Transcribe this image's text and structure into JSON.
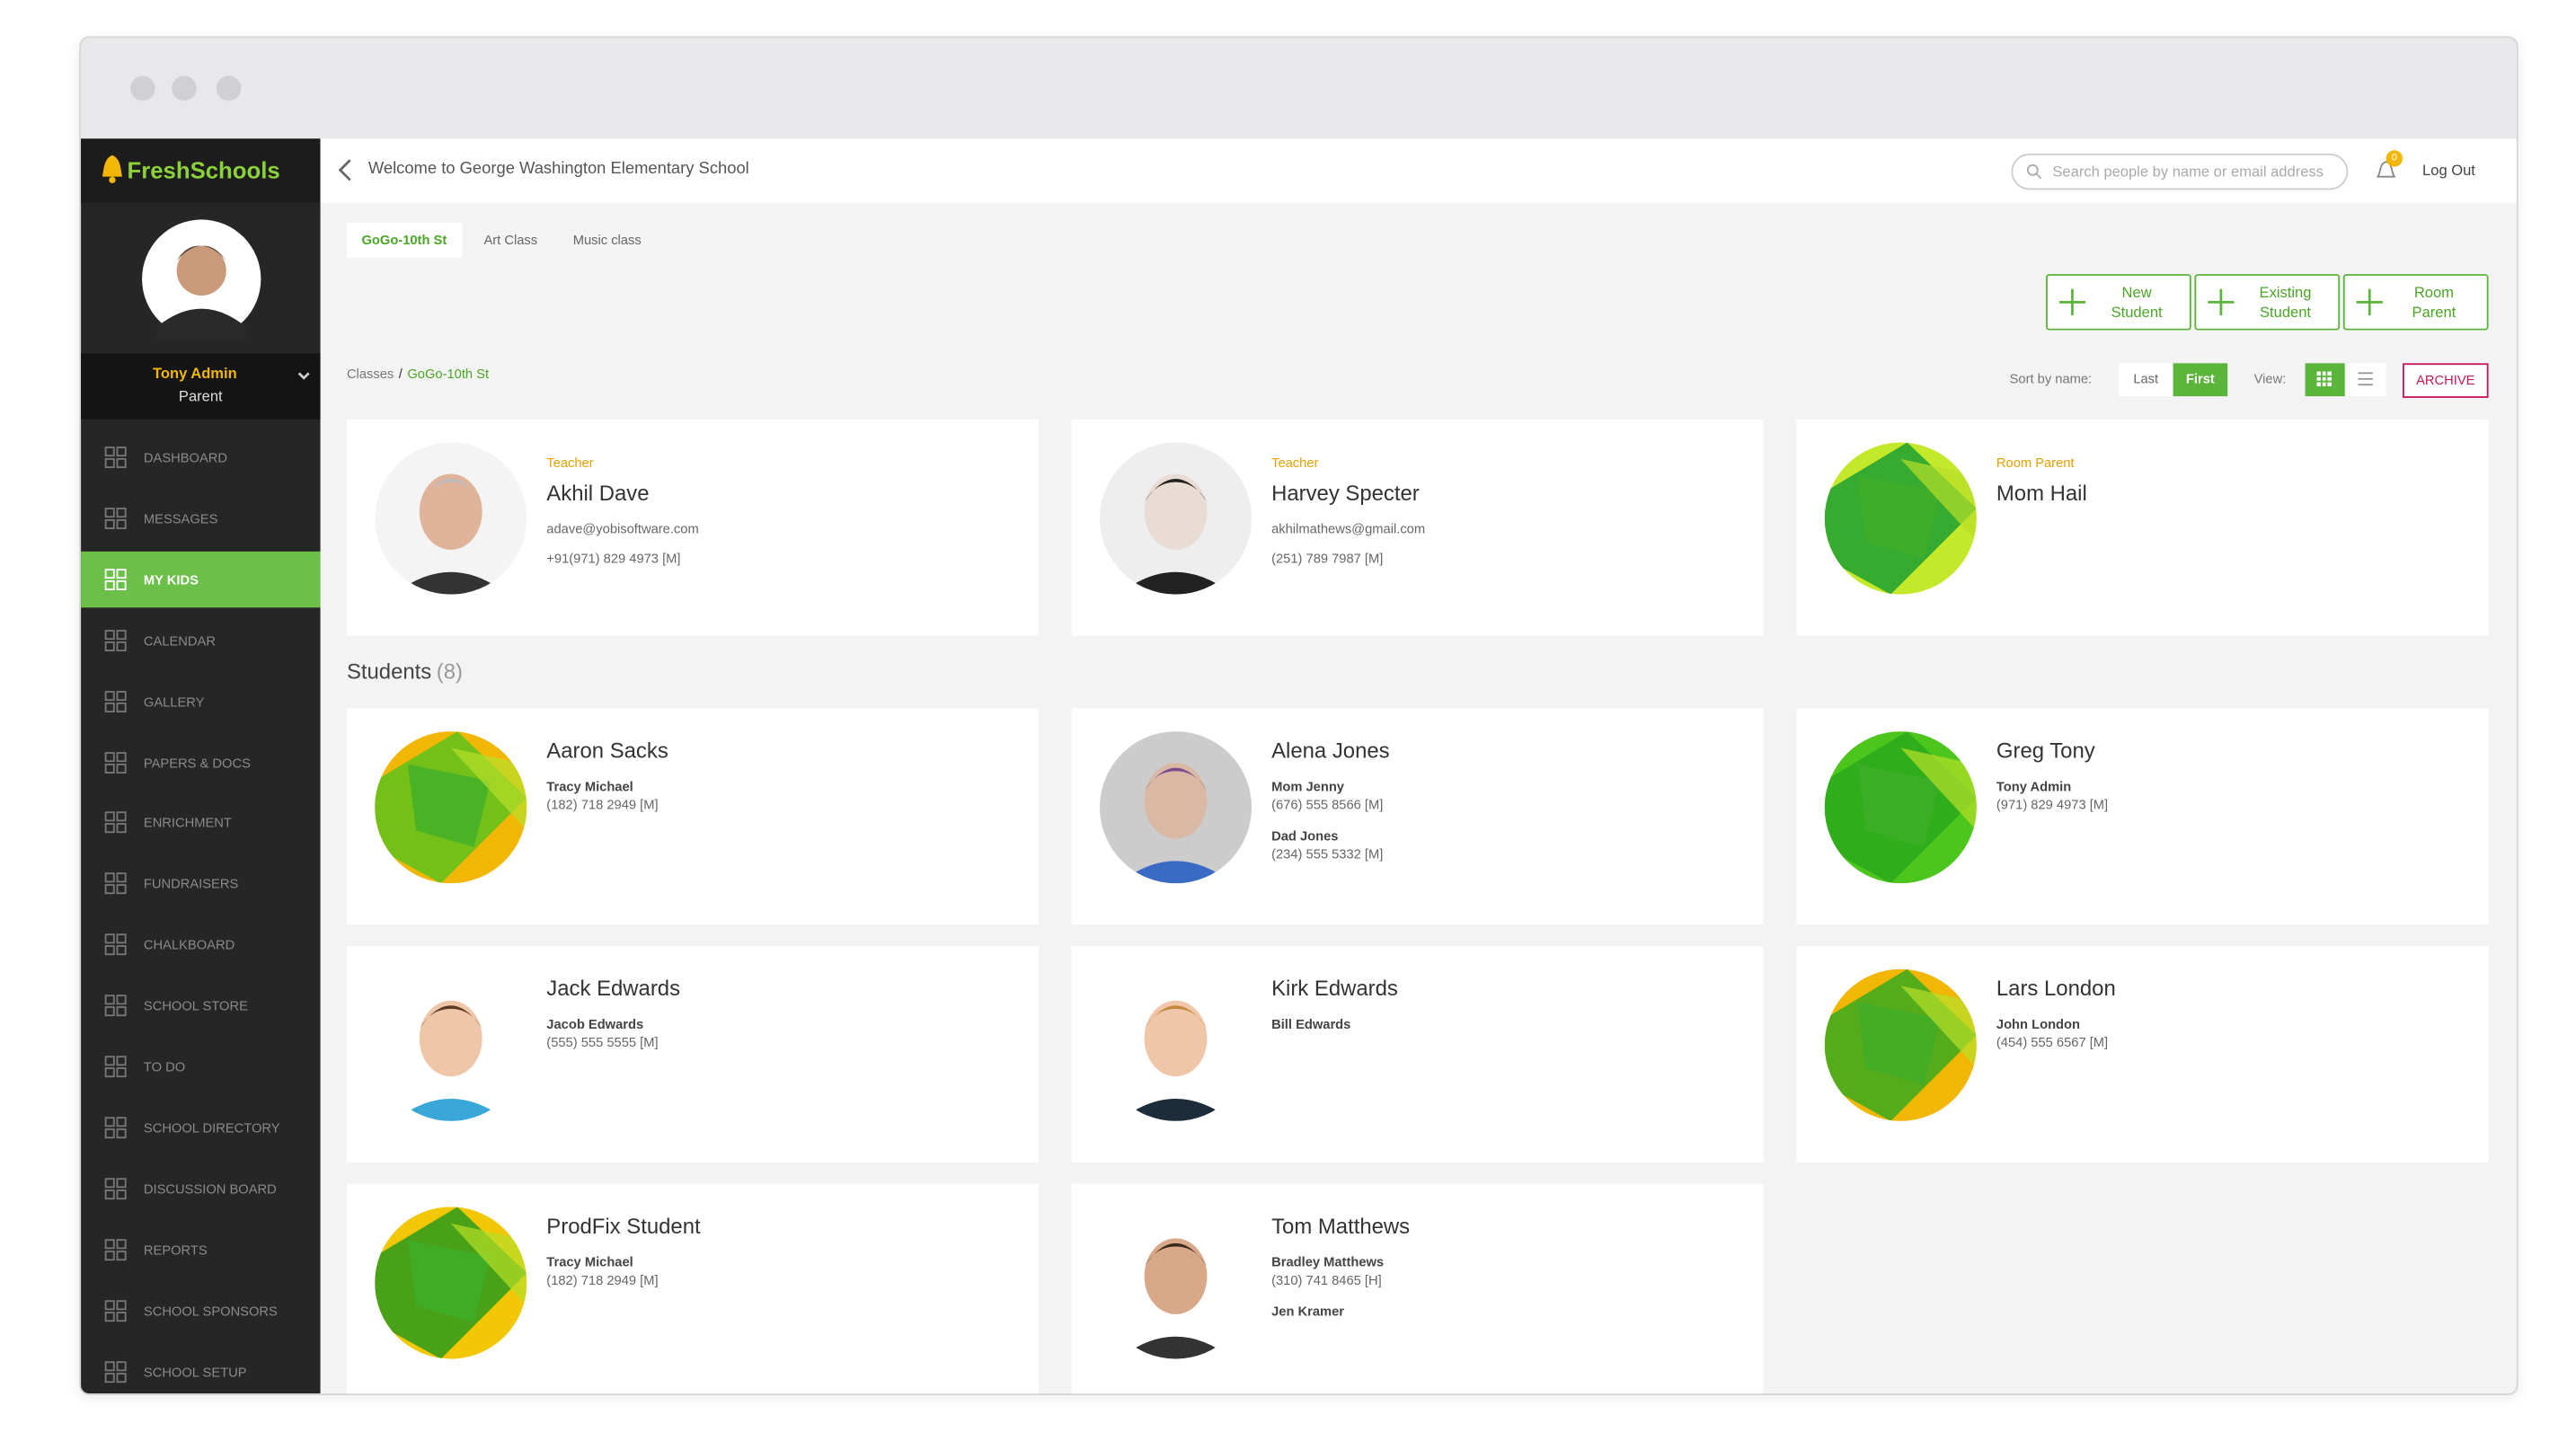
{
  "sidebar": {
    "brand": "FreshSchools",
    "user_name": "Tony Admin",
    "user_role": "Parent",
    "nav": [
      "DASHBOARD",
      "MESSAGES",
      "MY KIDS",
      "CALENDAR",
      "GALLERY",
      "PAPERS & DOCS",
      "ENRICHMENT",
      "FUNDRAISERS",
      "CHALKBOARD",
      "SCHOOL STORE",
      "TO DO",
      "SCHOOL DIRECTORY",
      "DISCUSSION BOARD",
      "REPORTS",
      "SCHOOL SPONSORS",
      "SCHOOL SETUP"
    ],
    "active": "MY KIDS"
  },
  "header": {
    "welcome": "Welcome to George Washington Elementary School",
    "search_placeholder": "Search people by name or email address",
    "notifications": "0",
    "logout": "Log Out"
  },
  "tabs": [
    "GoGo-10th St",
    "Art Class",
    "Music class"
  ],
  "actions": [
    "New Student",
    "Existing Student",
    "Room Parent"
  ],
  "breadcrumb": {
    "root": "Classes",
    "current": "GoGo-10th St"
  },
  "sort": {
    "label": "Sort by name:",
    "options": [
      "Last",
      "First"
    ],
    "active": "First",
    "view_label": "View:",
    "archive": "ARCHIVE"
  },
  "staff": [
    {
      "role": "Teacher",
      "name": "Akhil Dave",
      "email": "adave@yobisoftware.com",
      "phone": "+91(971) 829 4973 [M]"
    },
    {
      "role": "Teacher",
      "name": "Harvey Specter",
      "email": "akhilmathews@gmail.com",
      "phone": "(251) 789 7987 [M]"
    },
    {
      "role": "Room Parent",
      "name": "Mom Hail"
    }
  ],
  "students_title": "Students",
  "students_count": "(8)",
  "students": [
    {
      "name": "Aaron Sacks",
      "contacts": [
        {
          "name": "Tracy Michael",
          "phone": "(182) 718 2949 [M]"
        }
      ]
    },
    {
      "name": "Alena Jones",
      "contacts": [
        {
          "name": "Mom Jenny",
          "phone": "(676) 555 8566 [M]"
        },
        {
          "name": "Dad Jones",
          "phone": "(234) 555 5332 [M]"
        }
      ]
    },
    {
      "name": "Greg Tony",
      "contacts": [
        {
          "name": "Tony Admin",
          "phone": "(971) 829 4973 [M]"
        }
      ]
    },
    {
      "name": "Jack Edwards",
      "contacts": [
        {
          "name": "Jacob Edwards",
          "phone": "(555) 555 5555 [M]"
        }
      ]
    },
    {
      "name": "Kirk Edwards",
      "contacts": [
        {
          "name": "Bill Edwards"
        }
      ]
    },
    {
      "name": "Lars London",
      "contacts": [
        {
          "name": "John London",
          "phone": "(454) 555 6567 [M]"
        }
      ]
    },
    {
      "name": "ProdFix Student",
      "contacts": [
        {
          "name": "Tracy Michael",
          "phone": "(182) 718 2949 [M]"
        }
      ]
    },
    {
      "name": "Tom Matthews",
      "contacts": [
        {
          "name": "Bradley Matthews",
          "phone": "(310) 741 8465 [H]"
        },
        {
          "name": "Jen Kramer"
        }
      ]
    }
  ]
}
